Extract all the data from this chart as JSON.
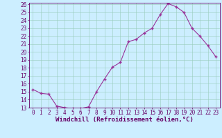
{
  "x": [
    0,
    1,
    2,
    3,
    4,
    5,
    6,
    7,
    8,
    9,
    10,
    11,
    12,
    13,
    14,
    15,
    16,
    17,
    18,
    19,
    20,
    21,
    22,
    23
  ],
  "y": [
    15.3,
    14.8,
    14.7,
    13.2,
    13.0,
    12.9,
    12.9,
    13.1,
    15.0,
    16.6,
    18.1,
    18.7,
    21.3,
    21.6,
    22.4,
    23.0,
    24.7,
    26.1,
    25.7,
    25.0,
    23.0,
    22.0,
    20.8,
    19.4
  ],
  "line_color": "#993399",
  "marker_color": "#993399",
  "bg_color": "#cceeff",
  "grid_color": "#99ccbb",
  "xlabel": "Windchill (Refroidissement éolien,°C)",
  "ylim": [
    13,
    26
  ],
  "xlim": [
    -0.5,
    23.5
  ],
  "yticks": [
    13,
    14,
    15,
    16,
    17,
    18,
    19,
    20,
    21,
    22,
    23,
    24,
    25,
    26
  ],
  "xticks": [
    0,
    1,
    2,
    3,
    4,
    5,
    6,
    7,
    8,
    9,
    10,
    11,
    12,
    13,
    14,
    15,
    16,
    17,
    18,
    19,
    20,
    21,
    22,
    23
  ],
  "title_color": "#660066",
  "axis_color": "#660066",
  "font_size": 5.5,
  "xlabel_fontsize": 6.5
}
